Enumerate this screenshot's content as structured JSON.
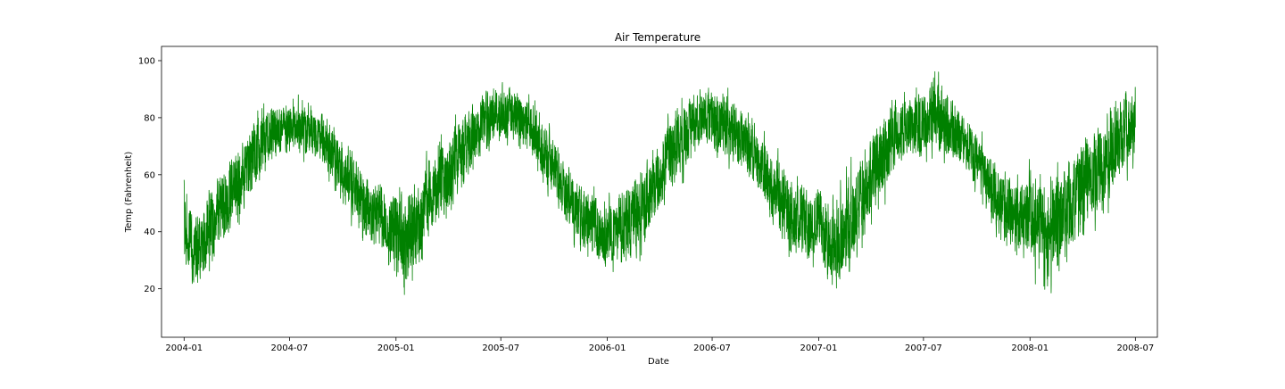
{
  "chart_data": {
    "type": "line",
    "title": "Air Temperature",
    "xlabel": "Date",
    "ylabel": "Temp (Fahrenheit)",
    "x_axis_kind": "date",
    "xlim": [
      "2003-11-23",
      "2008-08-08"
    ],
    "ylim": [
      3,
      105
    ],
    "x_ticks": [
      "2004-01",
      "2004-07",
      "2005-01",
      "2005-07",
      "2006-01",
      "2006-07",
      "2007-01",
      "2007-07",
      "2008-01",
      "2008-07"
    ],
    "y_ticks": [
      20,
      40,
      60,
      80,
      100
    ],
    "grid": false,
    "line_color": "#008000",
    "series": [
      {
        "x": [
          "2004-01-01",
          "2004-01-15",
          "2004-02-01",
          "2004-02-15",
          "2004-03-01",
          "2004-03-15",
          "2004-04-01",
          "2004-04-15",
          "2004-05-01",
          "2004-05-15",
          "2004-06-01",
          "2004-06-15",
          "2004-07-01",
          "2004-07-15",
          "2004-08-01",
          "2004-08-15",
          "2004-09-01",
          "2004-09-15",
          "2004-10-01",
          "2004-10-15",
          "2004-11-01",
          "2004-11-15",
          "2004-12-01",
          "2004-12-15",
          "2005-01-01",
          "2005-01-15",
          "2005-02-01",
          "2005-02-15",
          "2005-03-01",
          "2005-03-15",
          "2005-04-01",
          "2005-04-15",
          "2005-05-01",
          "2005-05-15",
          "2005-06-01",
          "2005-06-15",
          "2005-07-01",
          "2005-07-15",
          "2005-08-01",
          "2005-08-15",
          "2005-09-01",
          "2005-09-15",
          "2005-10-01",
          "2005-10-15",
          "2005-11-01",
          "2005-11-15",
          "2005-12-01",
          "2005-12-15",
          "2006-01-01",
          "2006-01-15",
          "2006-02-01",
          "2006-02-15",
          "2006-03-01",
          "2006-03-15",
          "2006-04-01",
          "2006-04-15",
          "2006-05-01",
          "2006-05-15",
          "2006-06-01",
          "2006-06-15",
          "2006-07-01",
          "2006-07-15",
          "2006-08-01",
          "2006-08-15",
          "2006-09-01",
          "2006-09-15",
          "2006-10-01",
          "2006-10-15",
          "2006-11-01",
          "2006-11-15",
          "2006-12-01",
          "2006-12-15",
          "2007-01-01",
          "2007-01-15",
          "2007-02-01",
          "2007-02-15",
          "2007-03-01",
          "2007-03-15",
          "2007-04-01",
          "2007-04-15",
          "2007-05-01",
          "2007-05-15",
          "2007-06-01",
          "2007-06-15",
          "2007-07-01",
          "2007-07-15",
          "2007-08-01",
          "2007-08-15",
          "2007-09-01",
          "2007-09-15",
          "2007-10-01",
          "2007-10-15",
          "2007-11-01",
          "2007-11-15",
          "2007-12-01",
          "2007-12-15",
          "2008-01-01",
          "2008-01-15",
          "2008-02-01",
          "2008-02-15",
          "2008-03-01",
          "2008-03-15",
          "2008-04-01",
          "2008-04-15",
          "2008-05-01",
          "2008-05-15",
          "2008-06-01",
          "2008-06-15",
          "2008-07-01"
        ],
        "low": [
          22,
          12,
          18,
          22,
          28,
          30,
          38,
          42,
          50,
          56,
          62,
          62,
          64,
          64,
          62,
          62,
          58,
          54,
          48,
          40,
          36,
          32,
          30,
          26,
          20,
          12,
          20,
          24,
          30,
          36,
          38,
          46,
          52,
          58,
          64,
          66,
          68,
          68,
          66,
          64,
          60,
          54,
          48,
          40,
          34,
          30,
          28,
          24,
          22,
          24,
          24,
          24,
          28,
          36,
          40,
          46,
          54,
          56,
          62,
          66,
          62,
          62,
          60,
          58,
          56,
          50,
          44,
          36,
          32,
          28,
          26,
          22,
          26,
          16,
          12,
          18,
          24,
          30,
          36,
          42,
          50,
          58,
          62,
          62,
          62,
          64,
          62,
          62,
          58,
          56,
          50,
          46,
          38,
          32,
          26,
          24,
          24,
          16,
          12,
          18,
          24,
          28,
          30,
          36,
          40,
          44,
          50,
          56,
          60
        ],
        "high": [
          70,
          52,
          50,
          60,
          66,
          72,
          76,
          78,
          84,
          86,
          88,
          88,
          88,
          90,
          88,
          86,
          84,
          80,
          76,
          70,
          66,
          64,
          62,
          56,
          62,
          60,
          62,
          66,
          72,
          76,
          80,
          84,
          88,
          90,
          92,
          94,
          96,
          96,
          94,
          92,
          88,
          82,
          76,
          70,
          66,
          62,
          60,
          56,
          56,
          56,
          60,
          64,
          68,
          72,
          78,
          84,
          88,
          92,
          94,
          94,
          96,
          94,
          92,
          88,
          84,
          80,
          76,
          72,
          68,
          64,
          64,
          60,
          64,
          56,
          60,
          64,
          70,
          74,
          80,
          84,
          88,
          90,
          92,
          94,
          96,
          100,
          98,
          92,
          88,
          84,
          80,
          76,
          72,
          68,
          64,
          62,
          68,
          66,
          62,
          66,
          70,
          74,
          78,
          80,
          84,
          88,
          94,
          96,
          94
        ]
      }
    ]
  }
}
